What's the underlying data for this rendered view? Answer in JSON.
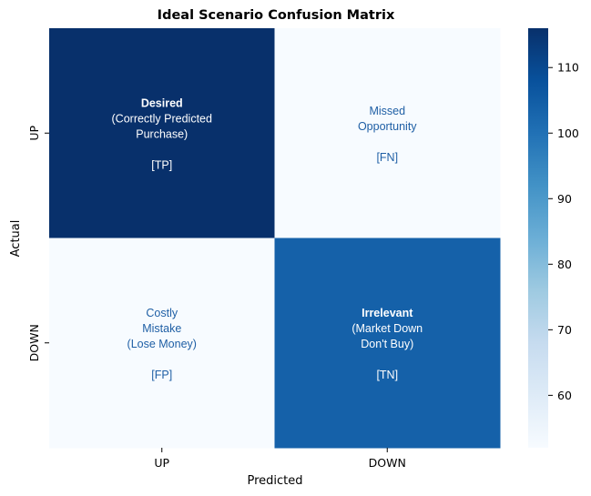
{
  "chart_data": {
    "type": "heatmap",
    "title": "Ideal Scenario Confusion Matrix",
    "xlabel": "Predicted",
    "ylabel": "Actual",
    "x_categories": [
      "UP",
      "DOWN"
    ],
    "y_categories": [
      "UP",
      "DOWN"
    ],
    "values": [
      [
        116,
        52
      ],
      [
        52,
        104
      ]
    ],
    "colormap": "Blues",
    "vmin": 52,
    "vmax": 116,
    "colorbar_ticks": [
      60,
      70,
      80,
      90,
      100,
      110
    ],
    "cells": [
      [
        {
          "lines": [
            "Desired",
            "(Correctly Predicted",
            "Purchase)",
            "",
            "[TP]"
          ],
          "bold_first": true
        },
        {
          "lines": [
            "Missed",
            "Opportunity",
            "",
            "[FN]"
          ],
          "bold_first": false
        }
      ],
      [
        {
          "lines": [
            "Costly",
            "Mistake",
            "(Lose Money)",
            "",
            "[FP]"
          ],
          "bold_first": false
        },
        {
          "lines": [
            "Irrelevant",
            "(Market Down",
            "Don't Buy)",
            "",
            "[TN]"
          ],
          "bold_first": true
        }
      ]
    ]
  },
  "colors": {
    "light_text": "#ffffff",
    "dark_text": "#1f5fa5",
    "axis": "#000000"
  }
}
